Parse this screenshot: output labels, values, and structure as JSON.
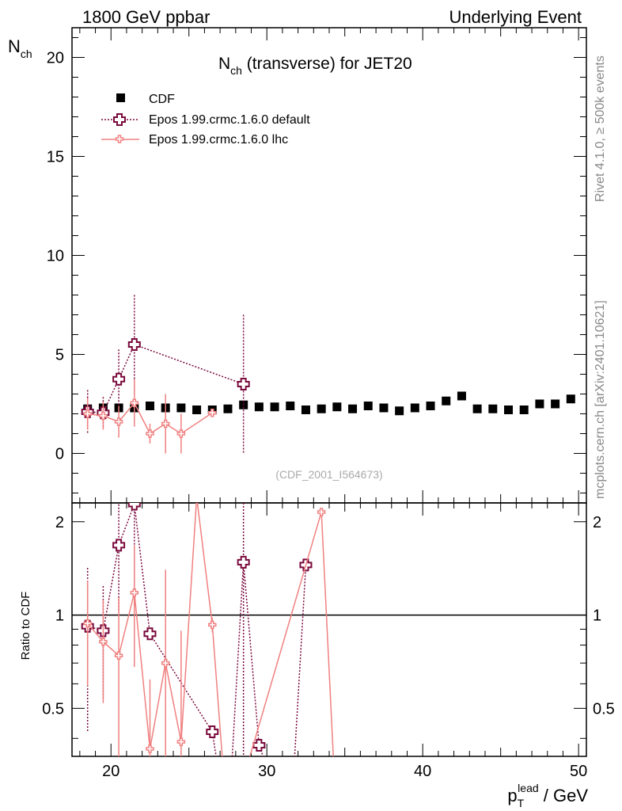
{
  "header": {
    "left": "1800 GeV ppbar",
    "right": "Underlying Event"
  },
  "side_labels": {
    "rivet": "Rivet 4.1.0, ≥ 500k events",
    "mcplots": "mcplots.cern.ch [arXiv:2401.10621]"
  },
  "chart_data": {
    "type": "scatter",
    "title_main": "N",
    "title_sub": "ch",
    "title_rest": " (transverse) for JET20",
    "ylabel_main": "N",
    "ylabel_sub": "ch",
    "ratio_ylabel": "Ratio to CDF",
    "xlabel_main": "p",
    "xlabel_sub": "T",
    "xlabel_sup": "lead",
    "xlabel_rest": " / GeV",
    "analysis_id": "(CDF_2001_I564673)",
    "xlim": [
      17.5,
      50.5
    ],
    "ylim": [
      -2.5,
      21.5
    ],
    "ratio_ylim": [
      0.35,
      2.3
    ],
    "x_ticks": [
      "20",
      "30",
      "40",
      "50"
    ],
    "y_ticks": [
      "0",
      "5",
      "10",
      "15",
      "20"
    ],
    "ratio_ticks": [
      "0.5",
      "1",
      "2"
    ],
    "legend": [
      {
        "label": "CDF",
        "style": "data"
      },
      {
        "label": "Epos 1.99.crmc.1.6.0 default",
        "style": "default"
      },
      {
        "label": "Epos 1.99.crmc.1.6.0 lhc",
        "style": "lhc"
      }
    ],
    "colors": {
      "data": "#000000",
      "default": "#7a0a3c",
      "lhc": "#f08080"
    },
    "cdf": {
      "x": [
        18.5,
        19.5,
        20.5,
        21.5,
        22.5,
        23.5,
        24.5,
        25.5,
        26.5,
        27.5,
        28.5,
        29.5,
        30.5,
        31.5,
        32.5,
        33.5,
        34.5,
        35.5,
        36.5,
        37.5,
        38.5,
        39.5,
        40.5,
        41.5,
        42.5,
        43.5,
        44.5,
        45.5,
        46.5,
        47.5,
        48.5,
        49.5
      ],
      "y": [
        2.25,
        2.3,
        2.3,
        2.3,
        2.4,
        2.3,
        2.3,
        2.2,
        2.2,
        2.25,
        2.45,
        2.35,
        2.35,
        2.4,
        2.2,
        2.25,
        2.35,
        2.25,
        2.4,
        2.3,
        2.15,
        2.3,
        2.4,
        2.65,
        2.9,
        2.25,
        2.25,
        2.2,
        2.2,
        2.5,
        2.5,
        2.75
      ]
    },
    "series": [
      {
        "name": "Epos 1.99.crmc.1.6.0 default",
        "style": "default",
        "x": [
          18.5,
          19.5,
          20.5,
          21.5,
          28.5
        ],
        "y": [
          2.1,
          2.05,
          3.75,
          5.5,
          3.5
        ],
        "err": [
          1.1,
          0.8,
          1.5,
          2.5,
          3.5
        ],
        "ratio_x": [
          18.5,
          19.5,
          20.5,
          21.5,
          22.5,
          26.5,
          27.5,
          28.5,
          29.5,
          31.5,
          32.5
        ],
        "ratio_y": [
          0.92,
          0.89,
          1.68,
          2.28,
          0.87,
          0.42,
          0.2,
          1.48,
          0.38,
          0.2,
          1.45
        ],
        "ratio_err": [
          0.5,
          0.35,
          0.65,
          1.1,
          0,
          0,
          0,
          1.5,
          0,
          0,
          0
        ]
      },
      {
        "name": "Epos 1.99.crmc.1.6.0 lhc",
        "style": "lhc",
        "x": [
          18.5,
          19.5,
          20.5,
          21.5,
          22.5,
          23.5,
          24.5,
          26.5
        ],
        "y": [
          2.0,
          1.9,
          1.6,
          2.55,
          1.0,
          1.5,
          1.0,
          2.05
        ],
        "err": [
          0.8,
          0.7,
          0.8,
          1.2,
          0.5,
          1.5,
          1.0,
          0.2
        ],
        "ratio_x": [
          18.5,
          19.5,
          20.5,
          21.5,
          22.5,
          23.5,
          24.5,
          25.5,
          26.5,
          27.5,
          33.5,
          34.5
        ],
        "ratio_y": [
          0.94,
          0.82,
          0.74,
          1.18,
          0.37,
          0.7,
          0.39,
          2.4,
          0.93,
          0.2,
          2.15,
          0.2
        ],
        "ratio_err": [
          0.35,
          0.3,
          0.4,
          0.5,
          0.25,
          0.7,
          0.5,
          0,
          0.05,
          0,
          0,
          0
        ]
      }
    ]
  }
}
